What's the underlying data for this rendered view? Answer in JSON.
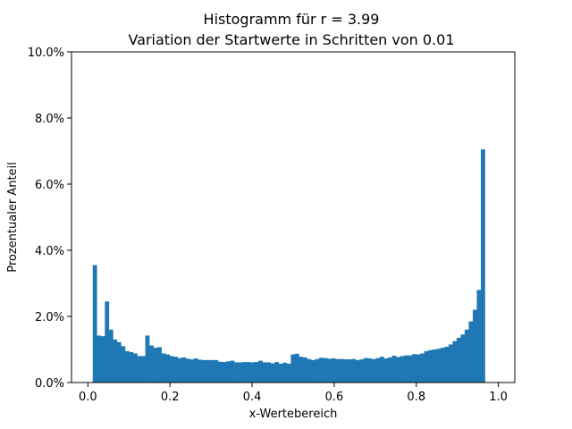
{
  "chart_data": {
    "type": "bar",
    "title_line1": "Histogramm für r = 3.99",
    "title_line2": "Variation der Startwerte in Schritten von 0.01",
    "xlabel": "x-Wertebereich",
    "ylabel": "Prozentualer Anteil",
    "xlim": [
      -0.04,
      1.04
    ],
    "ylim": [
      0,
      10
    ],
    "xticks": [
      0.0,
      0.2,
      0.4,
      0.6,
      0.8,
      1.0
    ],
    "xtick_labels": [
      "0.0",
      "0.2",
      "0.4",
      "0.6",
      "0.8",
      "1.0"
    ],
    "yticks": [
      0,
      2,
      4,
      6,
      8,
      10
    ],
    "ytick_labels": [
      "0.0%",
      "2.0%",
      "4.0%",
      "6.0%",
      "8.0%",
      "10.0%"
    ],
    "grid": false,
    "color": "#1f77b4",
    "bin_start": 0.0117,
    "bin_width": 0.00985,
    "values": [
      3.55,
      1.42,
      1.4,
      2.45,
      1.6,
      1.3,
      1.22,
      1.1,
      0.95,
      0.92,
      0.88,
      0.8,
      0.8,
      1.42,
      1.12,
      1.05,
      1.07,
      0.88,
      0.85,
      0.8,
      0.78,
      0.74,
      0.76,
      0.72,
      0.7,
      0.73,
      0.69,
      0.68,
      0.68,
      0.68,
      0.68,
      0.63,
      0.62,
      0.64,
      0.66,
      0.61,
      0.61,
      0.62,
      0.62,
      0.61,
      0.62,
      0.66,
      0.61,
      0.61,
      0.58,
      0.62,
      0.57,
      0.6,
      0.57,
      0.85,
      0.87,
      0.78,
      0.76,
      0.71,
      0.68,
      0.71,
      0.75,
      0.74,
      0.72,
      0.73,
      0.71,
      0.71,
      0.7,
      0.7,
      0.71,
      0.68,
      0.7,
      0.74,
      0.73,
      0.71,
      0.74,
      0.78,
      0.73,
      0.76,
      0.81,
      0.77,
      0.8,
      0.82,
      0.82,
      0.86,
      0.85,
      0.88,
      0.95,
      0.98,
      1.0,
      1.02,
      1.05,
      1.08,
      1.15,
      1.25,
      1.35,
      1.45,
      1.6,
      1.85,
      2.2,
      2.8,
      7.05
    ]
  }
}
